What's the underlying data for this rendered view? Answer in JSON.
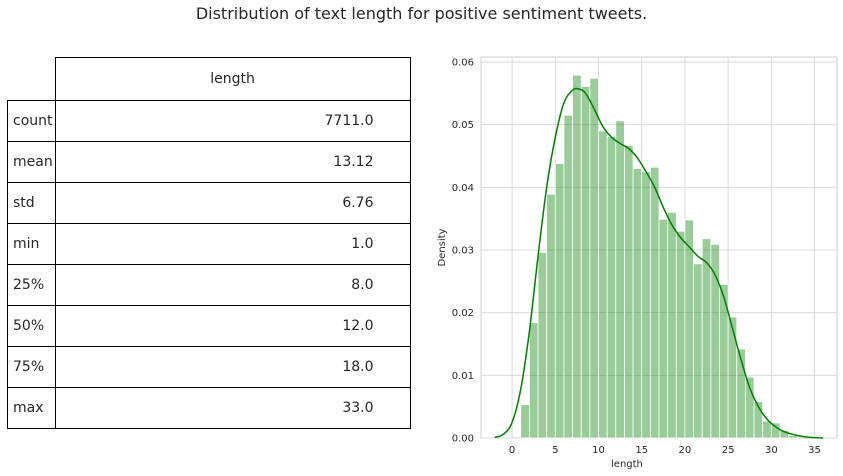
{
  "title": "Distribution of text length for positive sentiment tweets.",
  "table": {
    "column_header": "length",
    "rows": [
      {
        "label": "count",
        "value": "7711.0"
      },
      {
        "label": "mean",
        "value": "13.12"
      },
      {
        "label": "std",
        "value": "6.76"
      },
      {
        "label": "min",
        "value": "1.0"
      },
      {
        "label": "25%",
        "value": "8.0"
      },
      {
        "label": "50%",
        "value": "12.0"
      },
      {
        "label": "75%",
        "value": "18.0"
      },
      {
        "label": "max",
        "value": "33.0"
      }
    ]
  },
  "chart_data": {
    "type": "bar",
    "xlabel": "length",
    "ylabel": "Density",
    "xlim": [
      -3.6,
      37.6
    ],
    "ylim": [
      0,
      0.0608
    ],
    "x_ticks": [
      0,
      5,
      10,
      15,
      20,
      25,
      30,
      35
    ],
    "y_ticks": [
      0.0,
      0.01,
      0.02,
      0.03,
      0.04,
      0.05,
      0.06
    ],
    "y_tick_labels": [
      "0.00",
      "0.01",
      "0.02",
      "0.03",
      "0.04",
      "0.05",
      "0.06"
    ],
    "grid": true,
    "bar_color": "#008000",
    "bar_opacity": 0.4,
    "line_color": "#008000",
    "bins": [
      {
        "x0": 1.0,
        "x1": 2.0,
        "value": 0.0053
      },
      {
        "x0": 2.0,
        "x1": 3.0,
        "value": 0.0184
      },
      {
        "x0": 3.0,
        "x1": 4.0,
        "value": 0.0296
      },
      {
        "x0": 4.0,
        "x1": 5.0,
        "value": 0.0389
      },
      {
        "x0": 5.0,
        "x1": 6.0,
        "value": 0.0438
      },
      {
        "x0": 6.0,
        "x1": 7.0,
        "value": 0.0515
      },
      {
        "x0": 7.0,
        "x1": 8.0,
        "value": 0.0579
      },
      {
        "x0": 8.0,
        "x1": 9.0,
        "value": 0.0561
      },
      {
        "x0": 9.0,
        "x1": 10.0,
        "value": 0.0574
      },
      {
        "x0": 10.0,
        "x1": 11.0,
        "value": 0.049
      },
      {
        "x0": 11.0,
        "x1": 12.0,
        "value": 0.0481
      },
      {
        "x0": 12.0,
        "x1": 13.0,
        "value": 0.0506
      },
      {
        "x0": 13.0,
        "x1": 14.0,
        "value": 0.0467
      },
      {
        "x0": 14.0,
        "x1": 15.0,
        "value": 0.043
      },
      {
        "x0": 15.0,
        "x1": 16.0,
        "value": 0.0425
      },
      {
        "x0": 16.0,
        "x1": 17.0,
        "value": 0.0432
      },
      {
        "x0": 17.0,
        "x1": 18.0,
        "value": 0.0349
      },
      {
        "x0": 18.0,
        "x1": 19.0,
        "value": 0.036
      },
      {
        "x0": 19.0,
        "x1": 20.0,
        "value": 0.033
      },
      {
        "x0": 20.0,
        "x1": 21.0,
        "value": 0.0348
      },
      {
        "x0": 21.0,
        "x1": 22.0,
        "value": 0.0278
      },
      {
        "x0": 22.0,
        "x1": 23.0,
        "value": 0.0318
      },
      {
        "x0": 23.0,
        "x1": 24.0,
        "value": 0.0309
      },
      {
        "x0": 24.0,
        "x1": 25.0,
        "value": 0.0245
      },
      {
        "x0": 25.0,
        "x1": 26.0,
        "value": 0.0193
      },
      {
        "x0": 26.0,
        "x1": 27.0,
        "value": 0.0142
      },
      {
        "x0": 27.0,
        "x1": 28.0,
        "value": 0.0097
      },
      {
        "x0": 28.0,
        "x1": 29.0,
        "value": 0.0058
      },
      {
        "x0": 29.0,
        "x1": 30.0,
        "value": 0.0027
      },
      {
        "x0": 30.0,
        "x1": 31.0,
        "value": 0.0024
      },
      {
        "x0": 31.0,
        "x1": 32.0,
        "value": 0.0012
      },
      {
        "x0": 32.0,
        "x1": 33.0,
        "value": 0.0004
      }
    ],
    "kde": {
      "x": [
        -2.0,
        -1.0,
        0.0,
        1.0,
        2.0,
        3.0,
        4.0,
        5.0,
        6.0,
        7.0,
        7.7,
        8.5,
        9.5,
        10.5,
        11.5,
        12.5,
        13.5,
        14.5,
        15.5,
        16.5,
        17.5,
        18.5,
        19.5,
        20.5,
        21.5,
        22.5,
        23.5,
        24.5,
        25.5,
        26.5,
        27.5,
        28.5,
        29.5,
        30.5,
        31.5,
        33.0,
        34.5,
        36.0
      ],
      "y": [
        0.0001,
        0.0006,
        0.0025,
        0.0078,
        0.017,
        0.029,
        0.04,
        0.048,
        0.0535,
        0.0555,
        0.0557,
        0.055,
        0.0525,
        0.0497,
        0.048,
        0.047,
        0.0462,
        0.0447,
        0.0425,
        0.04,
        0.0368,
        0.034,
        0.032,
        0.0305,
        0.029,
        0.028,
        0.026,
        0.0225,
        0.0175,
        0.0125,
        0.008,
        0.005,
        0.003,
        0.0018,
        0.001,
        0.0004,
        0.0001,
        0.0
      ]
    }
  }
}
